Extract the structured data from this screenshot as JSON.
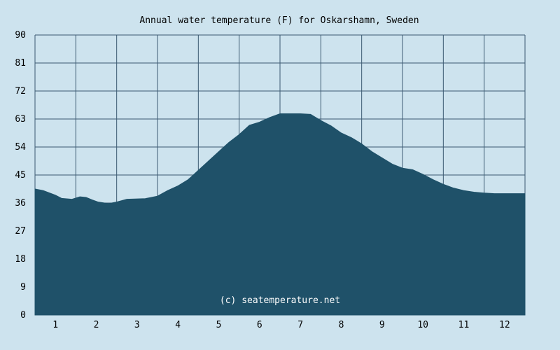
{
  "chart_data": {
    "type": "area",
    "title": "Annual water temperature (F) for Oskarshamn, Sweden",
    "xlabel": "",
    "ylabel": "",
    "x_ticks": [
      "1",
      "2",
      "3",
      "4",
      "5",
      "6",
      "7",
      "8",
      "9",
      "10",
      "11",
      "12"
    ],
    "y_ticks": [
      "0",
      "9",
      "18",
      "27",
      "36",
      "45",
      "54",
      "63",
      "72",
      "81",
      "90"
    ],
    "ylim": [
      0,
      90
    ],
    "xlim": [
      0.5,
      12.5
    ],
    "grid": true,
    "x": [
      0.5,
      0.7,
      1.0,
      1.15,
      1.4,
      1.6,
      1.75,
      1.9,
      2.05,
      2.3,
      2.5,
      2.75,
      2.95,
      3.2,
      3.5,
      3.75,
      4.0,
      4.25,
      4.5,
      4.75,
      5.0,
      5.25,
      5.5,
      5.75,
      6.0,
      6.25,
      6.5,
      6.75,
      7.0,
      7.25,
      7.5,
      7.75,
      8.0,
      8.25,
      8.5,
      8.75,
      9.0,
      9.25,
      9.5,
      9.75,
      10.0,
      10.25,
      10.5,
      10.75,
      11.0,
      11.25,
      11.5,
      11.75,
      12.0,
      12.25,
      12.5
    ],
    "values": [
      40.5,
      40,
      38.5,
      37.5,
      37.2,
      38,
      37.8,
      37,
      36.3,
      35.8,
      36.3,
      37.2,
      37.3,
      37.4,
      38.2,
      40,
      41.5,
      43.5,
      46.5,
      49.5,
      52.5,
      55.5,
      58,
      61,
      62,
      63.5,
      64.7,
      64.7,
      64.7,
      64.5,
      62.5,
      60.8,
      58.5,
      57,
      55,
      52.5,
      50.5,
      48.5,
      47.2,
      46.7,
      45.2,
      43.5,
      42,
      40.8,
      40,
      39.5,
      39.2,
      39,
      39,
      39,
      39
    ],
    "series": [
      {
        "name": "",
        "color": "#1f5169"
      }
    ],
    "colors": {
      "background": "#cde3ee",
      "plot_background": "#cde3ee",
      "fill": "#1f5169",
      "grid": "#3c5a72"
    }
  },
  "watermark": "(c) seatemperature.net"
}
